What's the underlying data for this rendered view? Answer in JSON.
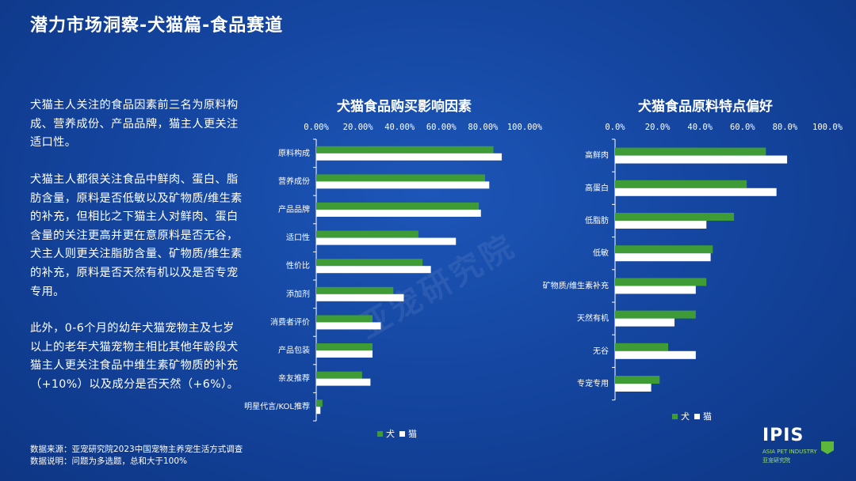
{
  "title": "潜力市场洞察-犬猫篇-食品赛道",
  "paragraphs": [
    "犬猫主人关注的食品因素前三名为原料构成、营养成份、产品品牌，猫主人更关注适口性。",
    "犬猫主人都很关注食品中鲜肉、蛋白、脂肪含量，原料是否低敏以及矿物质/维生素的补充，但相比之下猫主人对鲜肉、蛋白含量的关注更高并更在意原料是否无谷，犬主人则更关注脂肪含量、矿物质/维生素的补充，原料是否天然有机以及是否专宠专用。",
    "此外，0-6个月的幼年犬猫宠物主及七岁以上的老年犬猫宠物主相比其他年龄段犬猫主人更关注食品中维生素矿物质的补充（+10%）以及成分是否天然（+6%）。"
  ],
  "source": {
    "line1": "数据来源：亚宠研究院2023中国宠物主养宠生活方式调查",
    "line2": "数据说明：问题为多选题，总和大于100%"
  },
  "watermark": "亚宠研究院",
  "logo": {
    "name": "IPIS",
    "sub1": "ASIA PET INDUSTRY",
    "sub2": "亚宠研究院"
  },
  "colors": {
    "dog": "#3f9b35",
    "cat": "#ffffff",
    "axis": "#ffffff"
  },
  "chart_data": [
    {
      "type": "bar",
      "title": "犬猫食品购买影响因素",
      "orientation": "horizontal",
      "categories": [
        "原料构成",
        "营养成份",
        "产品品牌",
        "适口性",
        "性价比",
        "添加剂",
        "消费者评价",
        "产品包装",
        "亲友推荐",
        "明星代言/KOL推荐"
      ],
      "xlim": [
        0,
        100
      ],
      "ticks": [
        "0.00%",
        "20.00%",
        "40.00%",
        "60.00%",
        "80.00%",
        "100.00%"
      ],
      "series": [
        {
          "name": "犬",
          "values": [
            85,
            81,
            78,
            49,
            51,
            37,
            27,
            27,
            22,
            3
          ]
        },
        {
          "name": "猫",
          "values": [
            89,
            83,
            79,
            67,
            55,
            42,
            31,
            27,
            26,
            2
          ]
        }
      ],
      "legend": "bottom"
    },
    {
      "type": "bar",
      "title": "犬猫食品原料特点偏好",
      "orientation": "horizontal",
      "categories": [
        "高鲜肉",
        "高蛋白",
        "低脂肪",
        "低敏",
        "矿物质/维生素补充",
        "天然有机",
        "无谷",
        "专宠专用"
      ],
      "xlim": [
        0,
        100
      ],
      "ticks": [
        "0.0%",
        "20.0%",
        "40.0%",
        "60.0%",
        "80.0%",
        "100.0%"
      ],
      "series": [
        {
          "name": "犬",
          "values": [
            71,
            62,
            56,
            46,
            43,
            38,
            25,
            21
          ]
        },
        {
          "name": "猫",
          "values": [
            81,
            76,
            43,
            45,
            38,
            28,
            38,
            17
          ]
        }
      ],
      "legend": "bottom"
    }
  ]
}
